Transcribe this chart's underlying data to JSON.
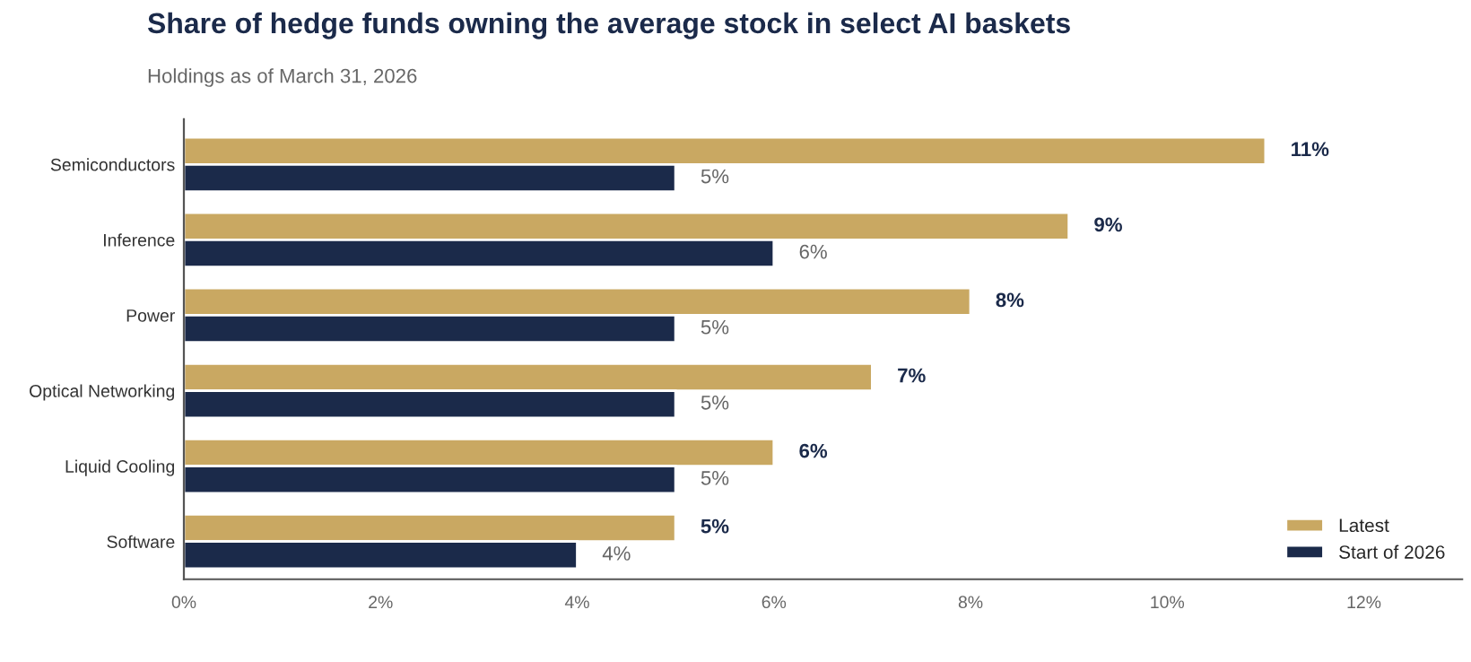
{
  "chart_data": {
    "type": "bar",
    "orientation": "horizontal",
    "title": "Share of hedge funds owning the average stock in select AI baskets",
    "subtitle": "Holdings as of March 31, 2026",
    "categories": [
      "Semiconductors",
      "Inference",
      "Power",
      "Optical Networking",
      "Liquid Cooling",
      "Software"
    ],
    "series": [
      {
        "name": "Latest",
        "color": "#c9a862",
        "values": [
          11,
          9,
          8,
          7,
          6,
          5
        ],
        "value_labels": [
          "11%",
          "9%",
          "8%",
          "7%",
          "6%",
          "5%"
        ]
      },
      {
        "name": "Start of 2026",
        "color": "#1b2a4a",
        "values": [
          5,
          6,
          5,
          5,
          5,
          4
        ],
        "value_labels": [
          "5%",
          "6%",
          "5%",
          "5%",
          "5%",
          "4%"
        ]
      }
    ],
    "legend": "bottom right",
    "xlim": [
      0,
      13
    ],
    "xticks": [
      {
        "value": 0,
        "label": "0%"
      },
      {
        "value": 2,
        "label": "2%"
      },
      {
        "value": 4,
        "label": "4%"
      },
      {
        "value": 6,
        "label": "6%"
      },
      {
        "value": 8,
        "label": "8%"
      },
      {
        "value": 10,
        "label": "10%"
      },
      {
        "value": 12,
        "label": "12%"
      }
    ]
  }
}
